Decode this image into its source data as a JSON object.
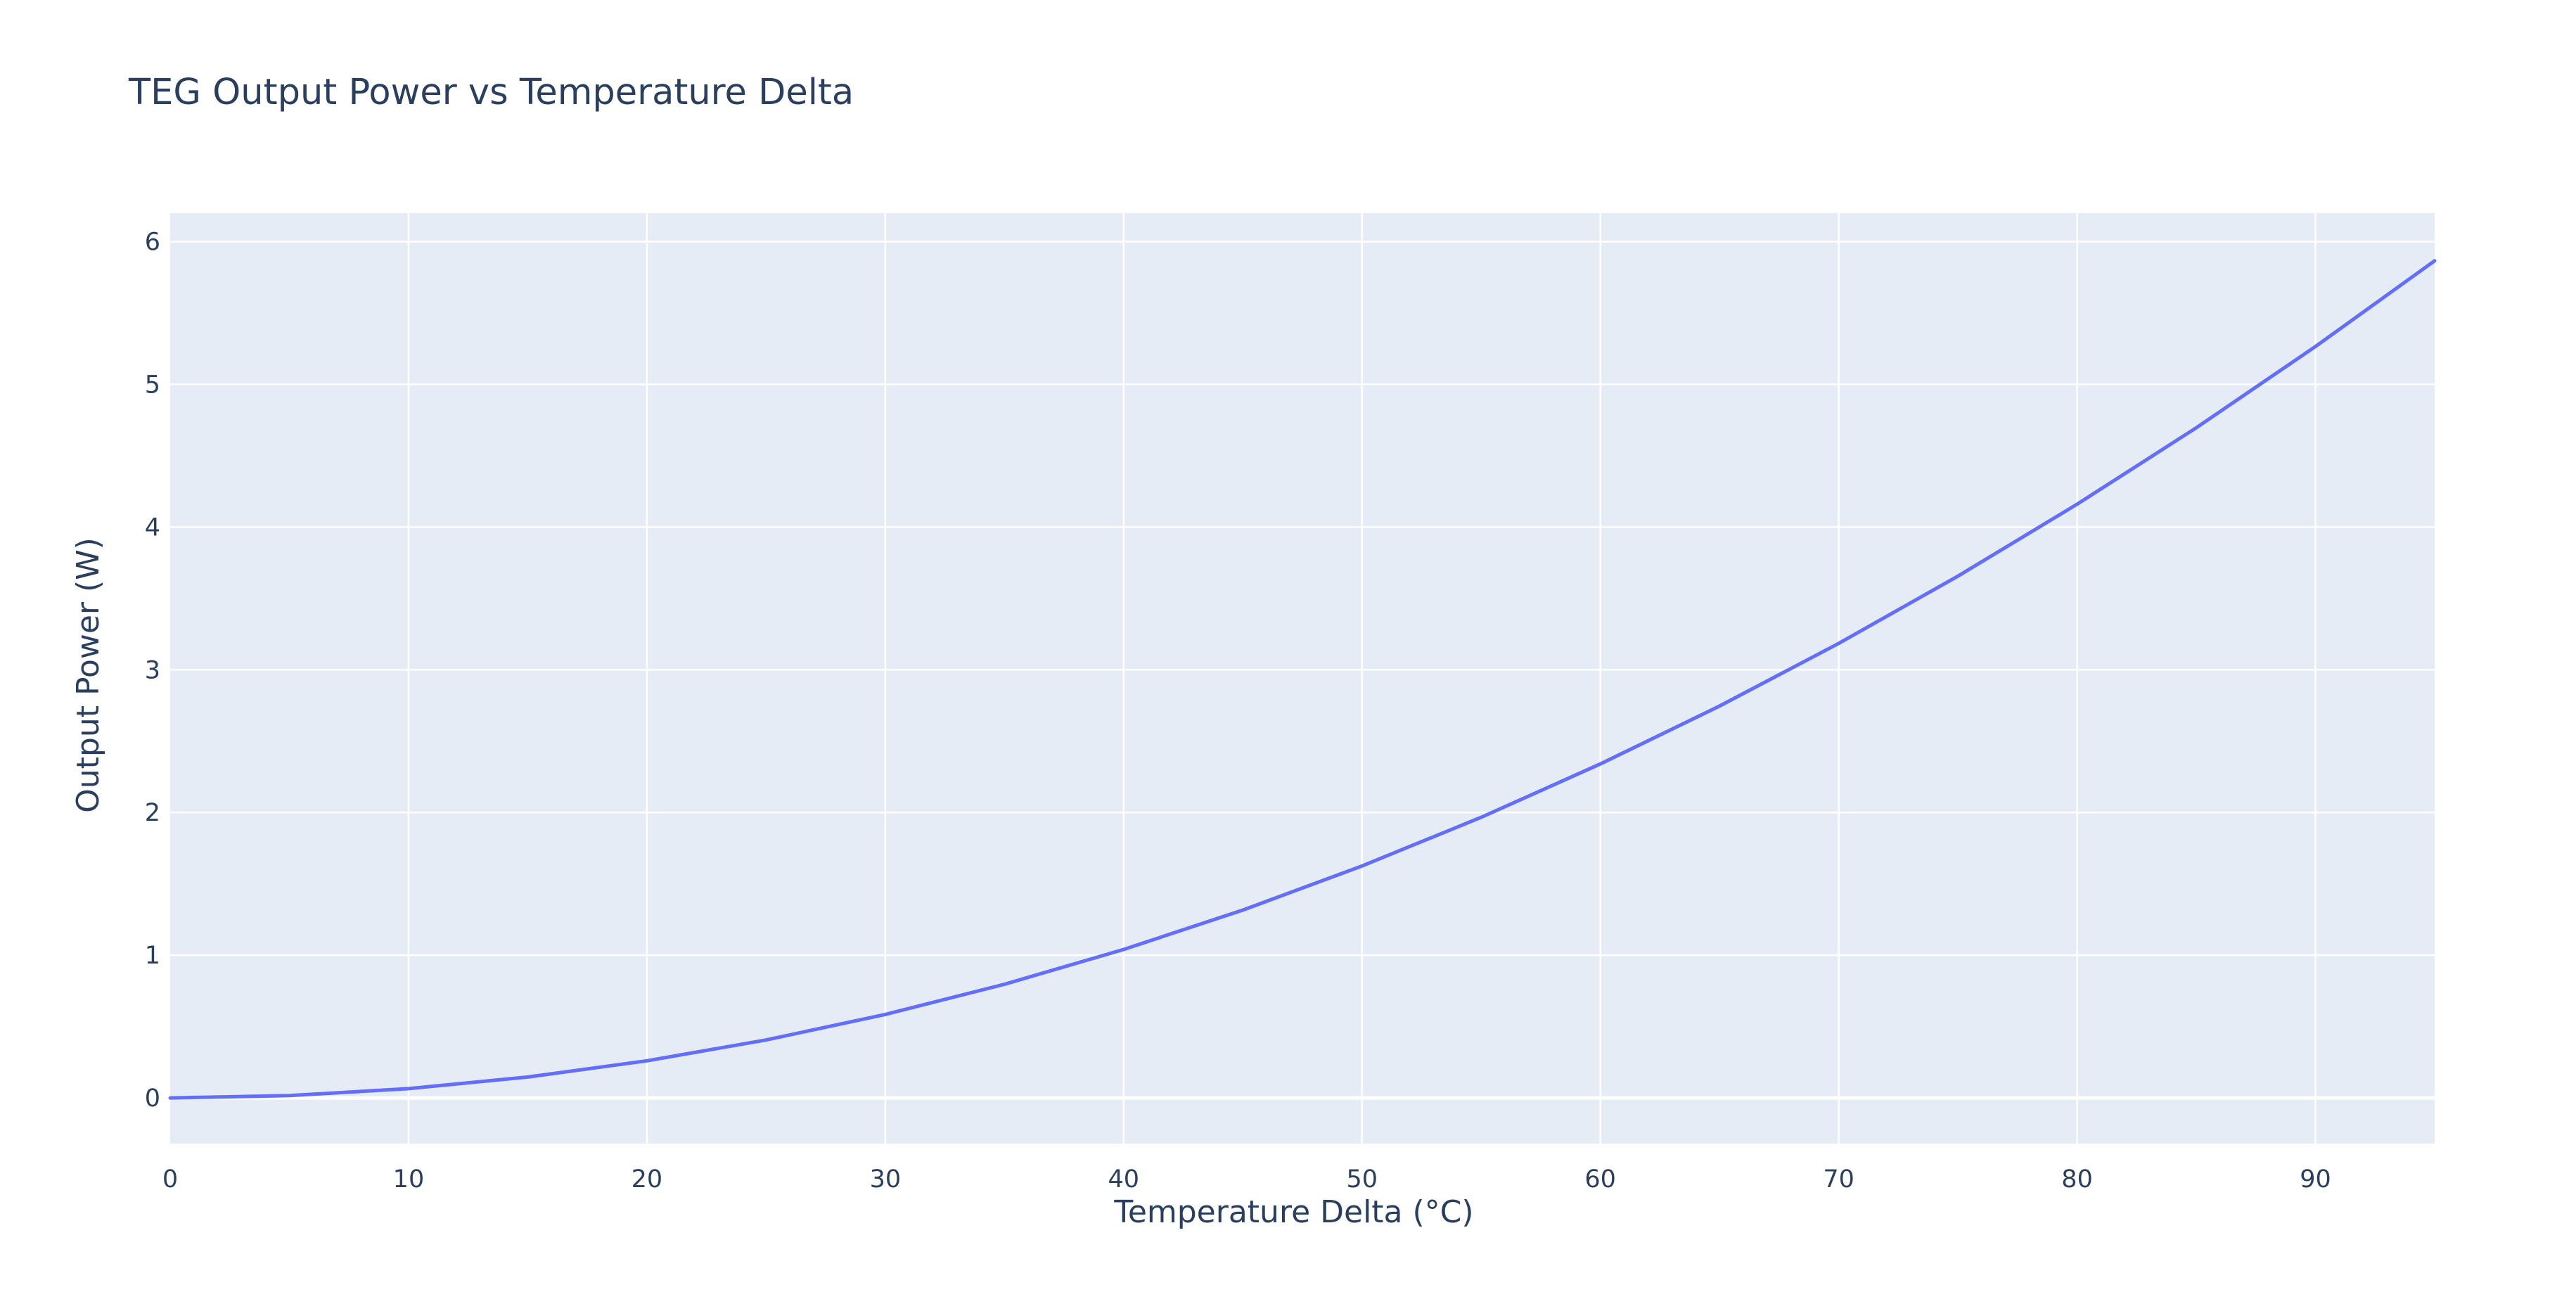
{
  "chart_data": {
    "type": "line",
    "title": "TEG Output Power vs Temperature Delta",
    "xlabel": "Temperature Delta (°C)",
    "ylabel": "Output Power (W)",
    "xlim": [
      0,
      95
    ],
    "ylim": [
      -0.32,
      6.2
    ],
    "x_ticks": [
      0,
      10,
      20,
      30,
      40,
      50,
      60,
      70,
      80,
      90
    ],
    "y_ticks": [
      0,
      1,
      2,
      3,
      4,
      5,
      6
    ],
    "grid": true,
    "legend": "none",
    "colors": {
      "plot_background": "#e5ecf6",
      "grid": "#ffffff",
      "line": "#636efa",
      "text": "#2a3f5f",
      "page_background": "#ffffff"
    },
    "series": [
      {
        "x": [
          0,
          5,
          10,
          15,
          20,
          25,
          30,
          35,
          40,
          45,
          50,
          55,
          60,
          65,
          70,
          75,
          80,
          85,
          90,
          95
        ],
        "values": [
          0,
          0.016,
          0.065,
          0.146,
          0.26,
          0.406,
          0.585,
          0.796,
          1.04,
          1.316,
          1.625,
          1.966,
          2.34,
          2.746,
          3.185,
          3.656,
          4.16,
          4.696,
          5.265,
          5.866
        ]
      }
    ]
  }
}
